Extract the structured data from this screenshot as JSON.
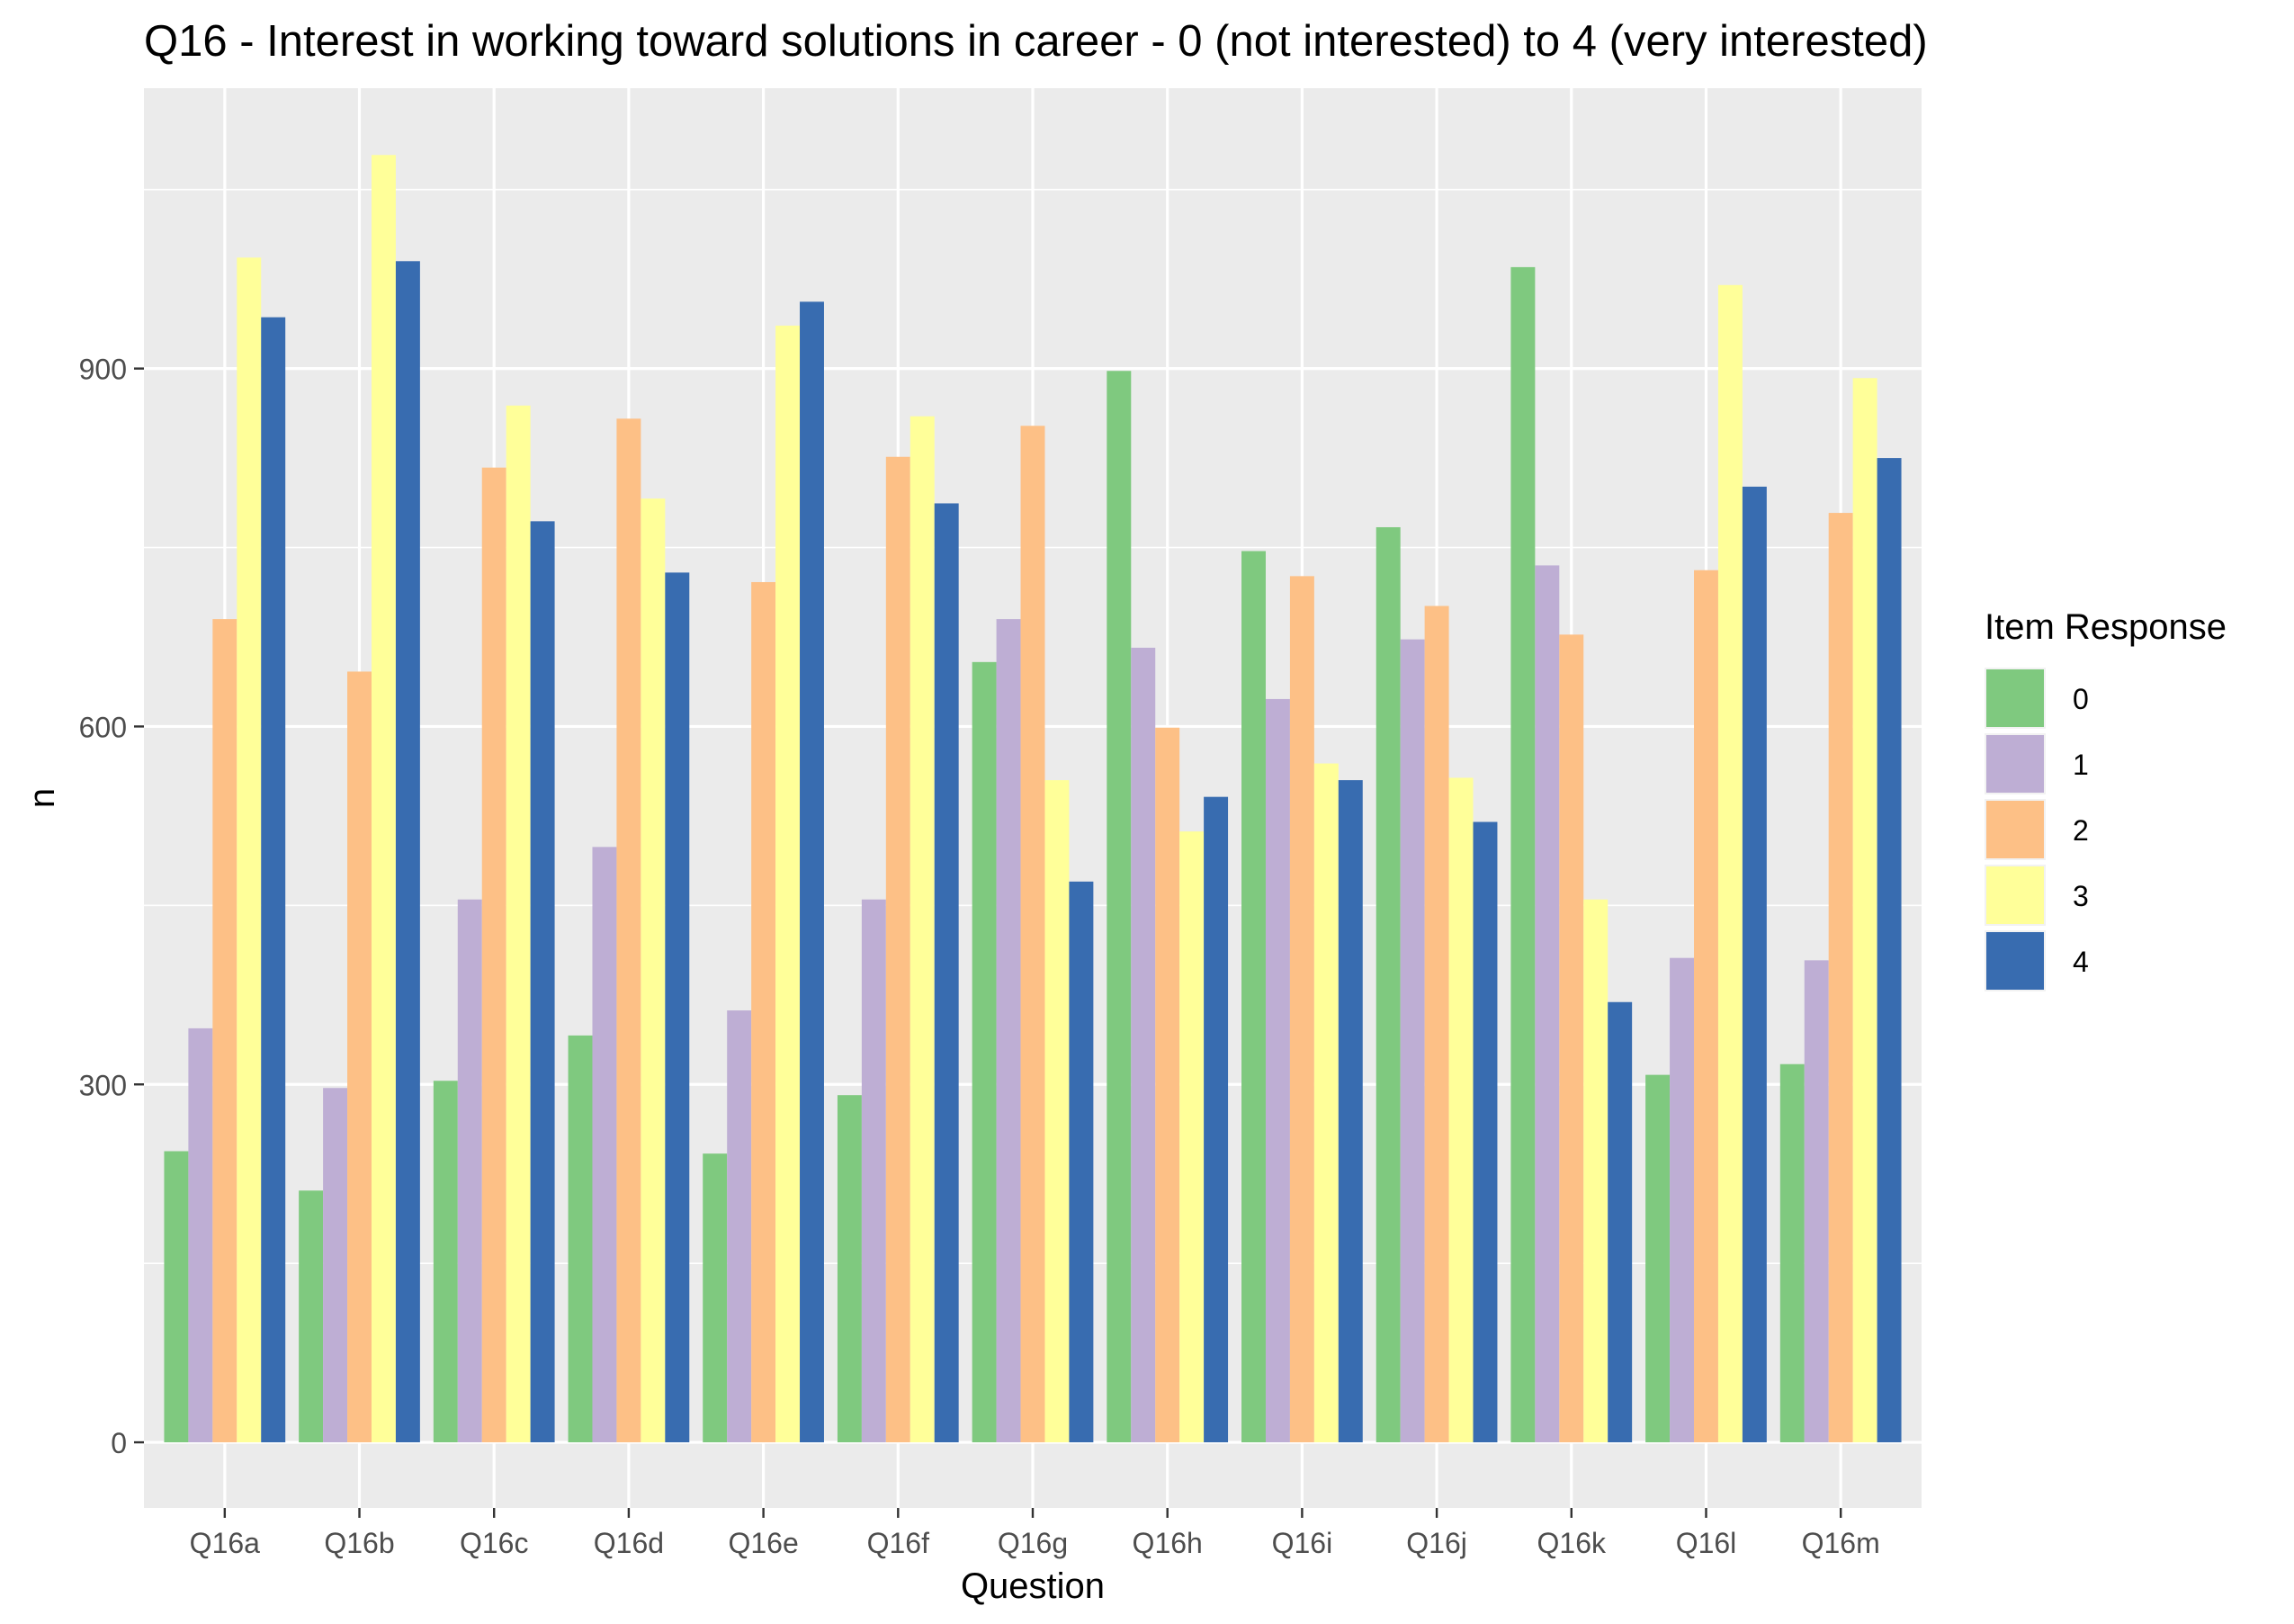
{
  "chart_data": {
    "type": "bar",
    "title": "Q16  - Interest in working toward solutions in career - 0 (not interested) to 4 (very interested)",
    "xlabel": "Question",
    "ylabel": "n",
    "ylim": [
      -55,
      1135
    ],
    "yticks": [
      0,
      300,
      600,
      900
    ],
    "grid": true,
    "legend_title": "Item Response",
    "legend_position": "right",
    "categories": [
      "Q16a",
      "Q16b",
      "Q16c",
      "Q16d",
      "Q16e",
      "Q16f",
      "Q16g",
      "Q16h",
      "Q16i",
      "Q16j",
      "Q16k",
      "Q16l",
      "Q16m"
    ],
    "series": [
      {
        "name": "0",
        "color": "#7FC97F",
        "values": [
          244,
          211,
          303,
          341,
          242,
          291,
          654,
          898,
          747,
          767,
          985,
          308,
          317
        ]
      },
      {
        "name": "1",
        "color": "#BEAED4",
        "values": [
          347,
          297,
          455,
          499,
          362,
          455,
          690,
          666,
          623,
          673,
          735,
          406,
          404
        ]
      },
      {
        "name": "2",
        "color": "#FDC086",
        "values": [
          690,
          646,
          817,
          858,
          721,
          826,
          852,
          599,
          726,
          701,
          677,
          731,
          779
        ]
      },
      {
        "name": "3",
        "color": "#FFFF99",
        "values": [
          993,
          1079,
          869,
          791,
          936,
          860,
          555,
          512,
          569,
          557,
          455,
          970,
          892
        ]
      },
      {
        "name": "4",
        "color": "#386CB0",
        "values": [
          943,
          990,
          772,
          729,
          956,
          787,
          470,
          541,
          555,
          520,
          369,
          801,
          825
        ]
      }
    ]
  }
}
